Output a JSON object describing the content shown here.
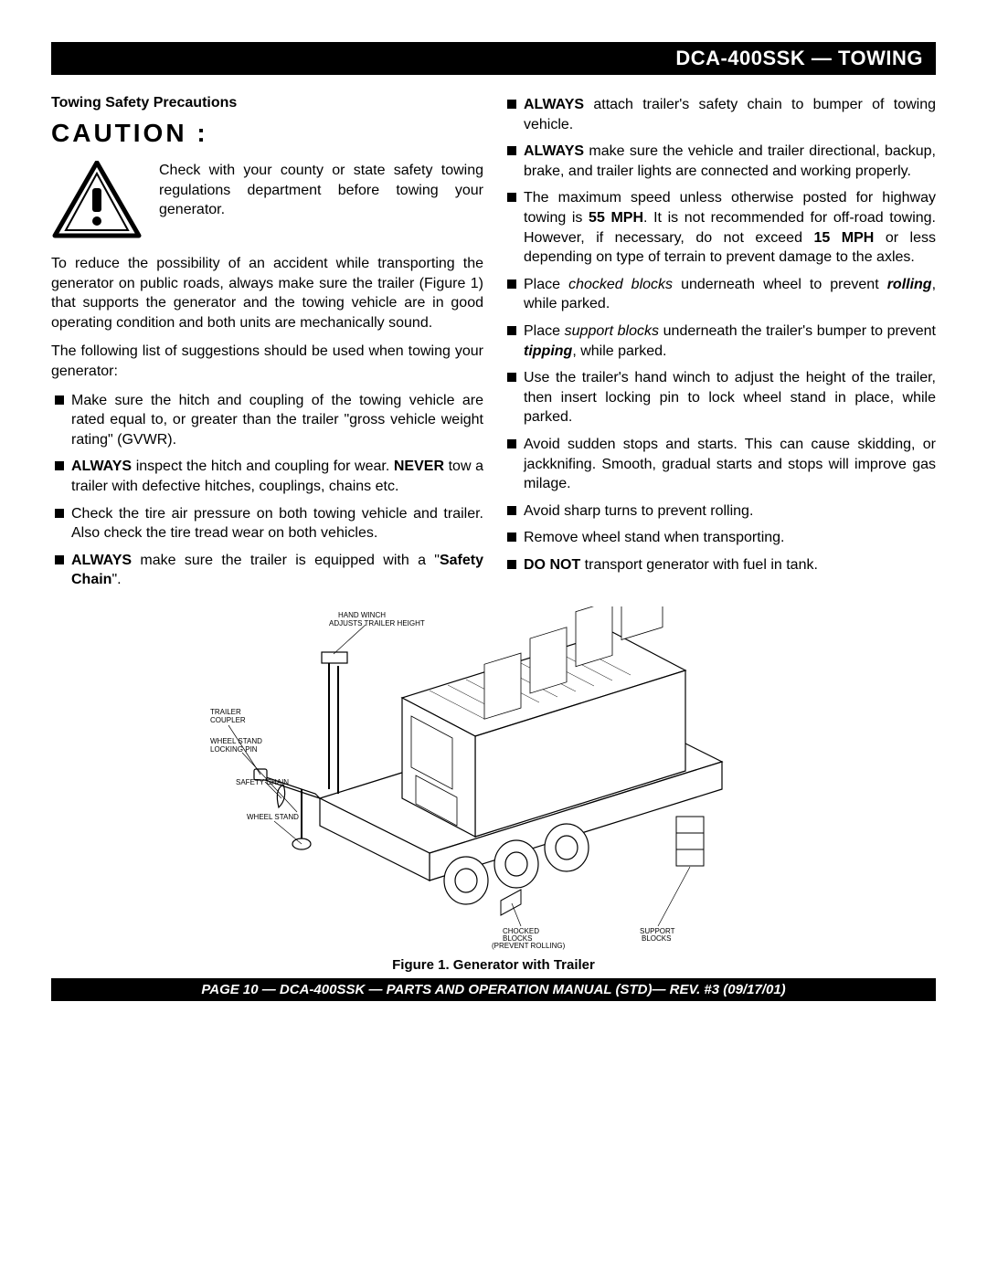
{
  "header": {
    "title": "DCA-400SSK  — TOWING"
  },
  "left_col": {
    "section_title": "Towing Safety Precautions",
    "caution_label": "CAUTION :",
    "caution_text": "Check with your county or state safety towing regulations department before towing your generator.",
    "para1": "To reduce the possibility of an accident while transporting the generator on public roads, always make sure the trailer (Figure 1) that supports the generator and the towing vehicle are in good operating condition and both units are mechanically sound.",
    "para2": "The following list of suggestions should be used when towing your generator:",
    "bullets": [
      {
        "html": "Make sure the hitch and coupling of the towing vehicle are rated equal to, or greater than the trailer \"gross vehicle weight rating\" (GVWR)."
      },
      {
        "html": "<span class='bold'>ALWAYS</span> inspect the hitch and coupling for wear. <span class='bold'>NEVER</span> tow a trailer with defective hitches, couplings, chains etc."
      },
      {
        "html": "Check the tire air pressure on both towing vehicle and trailer. Also check the tire tread wear on both vehicles."
      },
      {
        "html": "<span class='bold'>ALWAYS</span> make sure the trailer is equipped with a \"<span class='bold'>Safety Chain</span>\"."
      }
    ]
  },
  "right_col": {
    "bullets": [
      {
        "html": "<span class='bold'>ALWAYS</span> attach trailer's safety chain to bumper of towing vehicle."
      },
      {
        "html": "<span class='bold'>ALWAYS</span> make sure the vehicle and trailer directional, backup, brake, and trailer lights are connected and working properly."
      },
      {
        "html": "The maximum speed unless otherwise posted for highway towing is <span class='bold'>55 MPH</span>. It is not recommended for off-road towing.  However, if necessary, do not exceed <span class='bold'>15 MPH</span> or less depending on type of terrain to prevent damage to the axles."
      },
      {
        "html": "Place <span class='italic'>chocked blocks</span> underneath wheel to prevent <span class='bold italic'>rolling</span>, while parked."
      },
      {
        "html": "Place <span class='italic'>support blocks</span> underneath the trailer's bumper to prevent <span class='bold italic'>tipping</span>,  while parked."
      },
      {
        "html": "Use the trailer's hand winch to adjust the height of the trailer, then insert locking pin to lock wheel stand in place, while parked."
      },
      {
        "html": "Avoid sudden stops and starts. This can cause skidding, or jackknifing. Smooth, gradual starts and stops will improve gas milage."
      },
      {
        "html": "Avoid sharp turns to prevent rolling."
      },
      {
        "html": "Remove wheel stand when transporting."
      },
      {
        "html": "<span class='bold'>DO NOT</span> transport generator with fuel in tank."
      }
    ]
  },
  "figure": {
    "labels": {
      "hand_winch": "HAND WINCH\nADJUSTS TRAILER HEIGHT",
      "trailer_coupler": "TRAILER\nCOUPLER",
      "wheel_stand_lock": "WHEEL STAND\nLOCKING PIN",
      "safety_chain": "SAFETY CHAIN",
      "wheel_stand": "WHEEL STAND",
      "chocked_blocks": "CHOCKED\nBLOCKS\n(PREVENT ROLLING)",
      "support_blocks": "SUPPORT\nBLOCKS"
    },
    "caption": "Figure 1.   Generator with Trailer"
  },
  "footer": {
    "text": "PAGE 10 — DCA-400SSK — PARTS AND OPERATION MANUAL  (STD)— REV. #3  (09/17/01)"
  }
}
